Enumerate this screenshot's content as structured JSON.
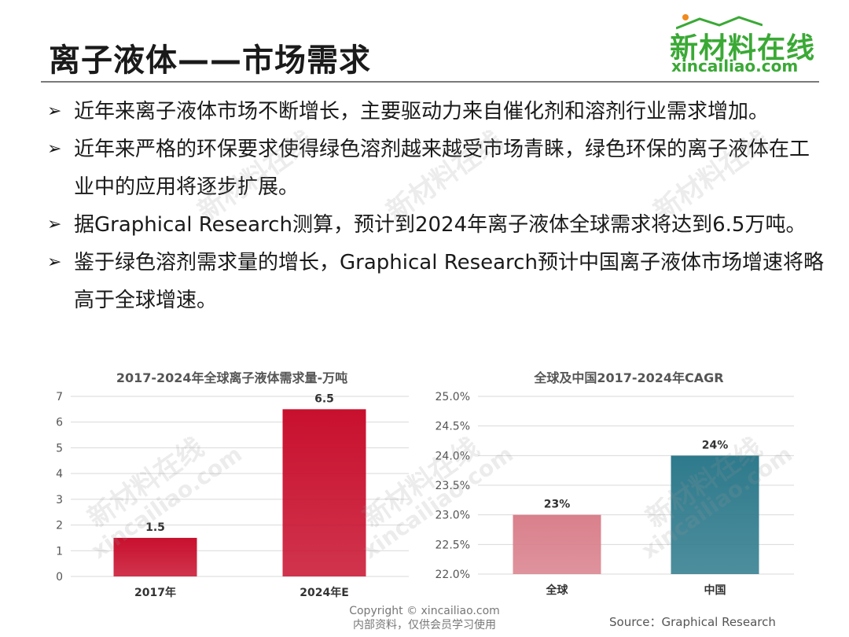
{
  "header": {
    "title": "离子液体——市场需求",
    "logo_cn": "新材料在线",
    "logo_en": "xincailiao.com"
  },
  "bullets": [
    "近年来离子液体市场不断增长，主要驱动力来自催化剂和溶剂行业需求增加。",
    "近年来严格的环保要求使得绿色溶剂越来越受市场青睐，绿色环保的离子液体在工业中的应用将逐步扩展。",
    "据Graphical Research测算，预计到2024年离子液体全球需求将达到6.5万吨。",
    "鉴于绿色溶剂需求量的增长，Graphical Research预计中国离子液体市场增速将略高于全球增速。"
  ],
  "bullet_marker": "➢",
  "chart_data": [
    {
      "type": "bar",
      "title": "2017-2024年全球离子液体需求量-万吨",
      "categories": [
        "2017年",
        "2024年E"
      ],
      "values": [
        1.5,
        6.5
      ],
      "data_labels": [
        "1.5",
        "6.5"
      ],
      "ylim": [
        0,
        7
      ],
      "yticks": [
        "0",
        "1",
        "2",
        "3",
        "4",
        "5",
        "6",
        "7"
      ],
      "colors": [
        "#c8102e",
        "#c8102e"
      ],
      "grid": true
    },
    {
      "type": "bar",
      "title": "全球及中国2017-2024年CAGR",
      "categories": [
        "全球",
        "中国"
      ],
      "values": [
        23.0,
        24.0
      ],
      "data_labels": [
        "23%",
        "24%"
      ],
      "ylim": [
        22.0,
        25.0
      ],
      "yticks": [
        "22.0%",
        "22.5%",
        "23.0%",
        "23.5%",
        "24.0%",
        "24.5%",
        "25.0%"
      ],
      "colors": [
        "#d9808c",
        "#2e7a8c"
      ],
      "grid": true
    }
  ],
  "footer": {
    "copyright": "Copyright © xincailiao.com",
    "notice": "内部资料，仅供会员学习使用",
    "source": "Source：Graphical Research"
  },
  "watermark": {
    "cn": "新材料在线",
    "en": "xincailiao.com"
  }
}
